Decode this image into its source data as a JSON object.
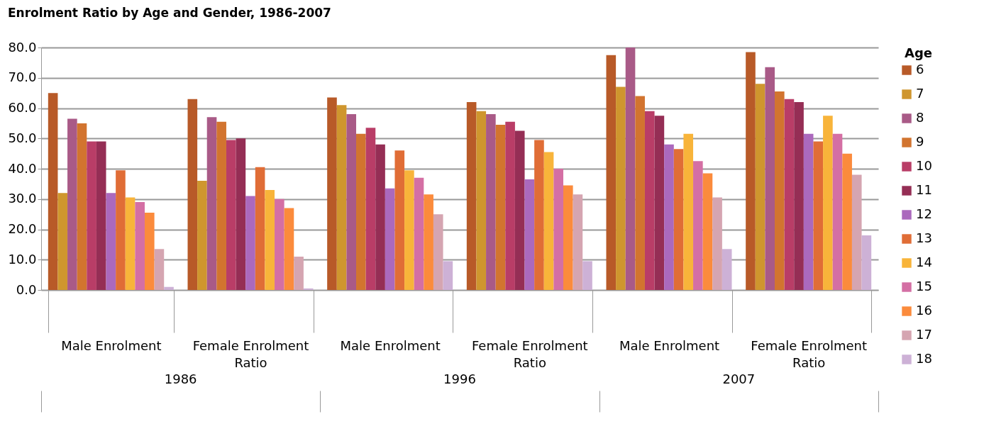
{
  "chart_data": {
    "type": "bar",
    "title": "Enrolment Ratio by Age and Gender, 1986-2007",
    "legend_title": "Age",
    "legend": "right",
    "grid": "y",
    "categories": [
      "Male Enrolment",
      "Female Enrolment Ratio",
      "Male Enrolment",
      "Female Enrolment Ratio",
      "Male Enrolment",
      "Female Enrolment Ratio"
    ],
    "annotations": [
      "1986",
      "1996",
      "2007"
    ],
    "ylim": [
      0,
      80
    ],
    "yticks": [
      {
        "value": 0,
        "label": "0.0"
      },
      {
        "value": 10,
        "label": "10.0"
      },
      {
        "value": 20,
        "label": "20.0"
      },
      {
        "value": 30,
        "label": "30.0"
      },
      {
        "value": 40,
        "label": "40.0"
      },
      {
        "value": 50,
        "label": "50.0"
      },
      {
        "value": 60,
        "label": "60.0"
      },
      {
        "value": 70,
        "label": "70.0"
      },
      {
        "value": 80,
        "label": "80.0"
      }
    ],
    "series": [
      {
        "name": "6",
        "color": "#b85a28",
        "values": [
          65,
          63,
          63.5,
          62,
          77.5,
          78.5
        ]
      },
      {
        "name": "7",
        "color": "#cf962e",
        "values": [
          32,
          36,
          61,
          59,
          67,
          68
        ]
      },
      {
        "name": "8",
        "color": "#a95a87",
        "values": [
          56.5,
          57,
          58,
          58,
          80,
          73.5
        ]
      },
      {
        "name": "9",
        "color": "#d2742f",
        "values": [
          55,
          55.5,
          51.5,
          54.5,
          64,
          65.5
        ]
      },
      {
        "name": "10",
        "color": "#b93d67",
        "values": [
          49,
          49.5,
          53.5,
          55.5,
          59,
          63
        ]
      },
      {
        "name": "11",
        "color": "#952e55",
        "values": [
          49,
          50,
          48,
          52.5,
          57.5,
          62
        ]
      },
      {
        "name": "12",
        "color": "#ab69bd",
        "values": [
          32,
          31,
          33.5,
          36.5,
          48,
          51.5
        ]
      },
      {
        "name": "13",
        "color": "#e06d36",
        "values": [
          39.5,
          40.5,
          46,
          49.5,
          46.5,
          49
        ]
      },
      {
        "name": "14",
        "color": "#f8b43a",
        "values": [
          30.5,
          33,
          39.5,
          45.5,
          51.5,
          57.5
        ]
      },
      {
        "name": "15",
        "color": "#d46fa4",
        "values": [
          29,
          30,
          37,
          40,
          42.5,
          51.5
        ]
      },
      {
        "name": "16",
        "color": "#fb8b3c",
        "values": [
          25.5,
          27,
          31.5,
          34.5,
          38.5,
          45
        ]
      },
      {
        "name": "17",
        "color": "#d5a5b1",
        "values": [
          13.5,
          11,
          25,
          31.5,
          30.5,
          38
        ]
      },
      {
        "name": "18",
        "color": "#cdb1d6",
        "values": [
          1,
          0.5,
          9.5,
          9.5,
          13.5,
          18
        ]
      }
    ]
  }
}
